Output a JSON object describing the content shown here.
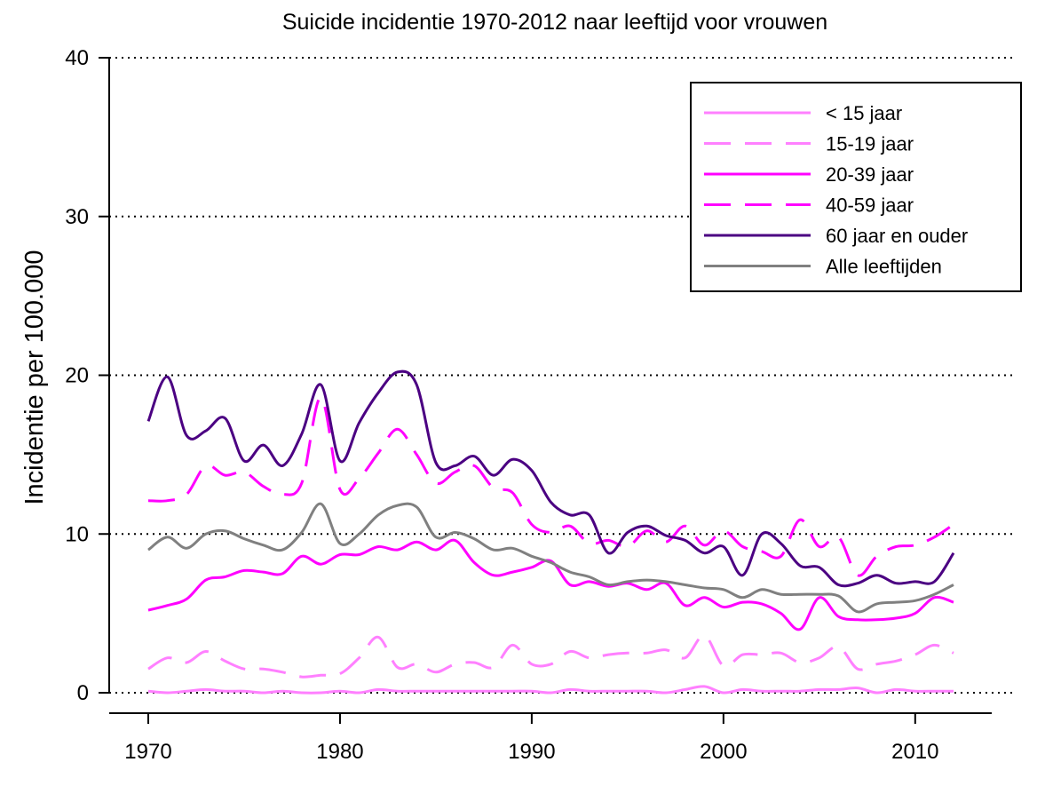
{
  "chart_data": {
    "type": "line",
    "title": "Suicide incidentie 1970-2012 naar leeftijd voor vrouwen",
    "xlabel": "",
    "ylabel": "Incidentie per 100.000",
    "xlim": [
      1970,
      2012
    ],
    "ylim": [
      0,
      40
    ],
    "xticks": [
      1970,
      1980,
      1990,
      2000,
      2010
    ],
    "yticks": [
      0,
      10,
      20,
      30,
      40
    ],
    "grid": "horizontal dotted",
    "legend_position": "top-right",
    "x": [
      1970,
      1971,
      1972,
      1973,
      1974,
      1975,
      1976,
      1977,
      1978,
      1979,
      1980,
      1981,
      1982,
      1983,
      1984,
      1985,
      1986,
      1987,
      1988,
      1989,
      1990,
      1991,
      1992,
      1993,
      1994,
      1995,
      1996,
      1997,
      1998,
      1999,
      2000,
      2001,
      2002,
      2003,
      2004,
      2005,
      2006,
      2007,
      2008,
      2009,
      2010,
      2011,
      2012
    ],
    "series": [
      {
        "name": "< 15 jaar",
        "color": "#ff80ff",
        "dash": "solid",
        "values": [
          0.1,
          0.0,
          0.1,
          0.2,
          0.1,
          0.1,
          0.0,
          0.1,
          0.0,
          0.0,
          0.1,
          0.0,
          0.2,
          0.1,
          0.1,
          0.1,
          0.1,
          0.1,
          0.1,
          0.1,
          0.1,
          0.0,
          0.2,
          0.1,
          0.1,
          0.1,
          0.1,
          0.0,
          0.2,
          0.4,
          0.0,
          0.2,
          0.1,
          0.1,
          0.1,
          0.2,
          0.2,
          0.3,
          0.0,
          0.2,
          0.1,
          0.1,
          0.1
        ]
      },
      {
        "name": "15-19 jaar",
        "color": "#ff80ff",
        "dash": "dashed",
        "values": [
          1.5,
          2.2,
          1.9,
          2.6,
          2.0,
          1.5,
          1.5,
          1.3,
          1.0,
          1.1,
          1.2,
          2.2,
          3.5,
          1.6,
          1.8,
          1.3,
          1.8,
          1.9,
          1.6,
          3.0,
          1.8,
          1.8,
          2.6,
          2.2,
          2.4,
          2.5,
          2.5,
          2.7,
          2.2,
          3.6,
          1.7,
          2.4,
          2.4,
          2.5,
          1.9,
          2.2,
          2.9,
          1.5,
          1.8,
          2.0,
          2.4,
          3.0,
          2.5
        ]
      },
      {
        "name": "20-39 jaar",
        "color": "#ff00ff",
        "dash": "solid",
        "values": [
          5.2,
          5.5,
          5.9,
          7.1,
          7.3,
          7.7,
          7.6,
          7.5,
          8.6,
          8.1,
          8.7,
          8.7,
          9.2,
          9.0,
          9.5,
          9.0,
          9.6,
          8.2,
          7.4,
          7.6,
          7.9,
          8.3,
          6.8,
          7.0,
          6.7,
          6.9,
          6.5,
          6.9,
          5.5,
          6.0,
          5.4,
          5.7,
          5.6,
          5.0,
          4.0,
          6.0,
          4.8,
          4.6,
          4.6,
          4.7,
          5.0,
          6.0,
          5.7
        ]
      },
      {
        "name": "40-59 jaar",
        "color": "#ff00ff",
        "dash": "dashed",
        "values": [
          12.1,
          12.1,
          12.5,
          14.3,
          13.7,
          13.9,
          13.0,
          12.5,
          13.2,
          18.6,
          12.8,
          13.5,
          15.1,
          16.6,
          15.0,
          13.2,
          13.9,
          14.3,
          12.9,
          12.6,
          10.6,
          10.1,
          10.5,
          9.4,
          9.6,
          9.2,
          10.2,
          9.5,
          10.5,
          9.3,
          10.2,
          9.2,
          8.9,
          8.6,
          10.9,
          9.2,
          9.8,
          7.4,
          8.6,
          9.2,
          9.3,
          9.8,
          10.6
        ]
      },
      {
        "name": "60 jaar en ouder",
        "color": "#4b0082",
        "dash": "solid",
        "values": [
          17.1,
          19.9,
          16.2,
          16.5,
          17.3,
          14.6,
          15.6,
          14.3,
          16.3,
          19.4,
          14.6,
          17.0,
          18.9,
          20.2,
          19.4,
          14.5,
          14.3,
          14.9,
          13.7,
          14.7,
          14.0,
          12.0,
          11.2,
          11.2,
          8.8,
          10.1,
          10.5,
          9.9,
          9.6,
          8.8,
          9.2,
          7.4,
          10.0,
          9.4,
          8.0,
          7.9,
          6.8,
          6.9,
          7.4,
          6.9,
          7.0,
          7.0,
          8.8
        ]
      },
      {
        "name": "Alle leeftijden",
        "color": "#808080",
        "dash": "solid",
        "values": [
          9.0,
          9.8,
          9.1,
          10.0,
          10.2,
          9.7,
          9.3,
          9.0,
          10.1,
          11.9,
          9.4,
          10.0,
          11.2,
          11.8,
          11.7,
          9.8,
          10.1,
          9.7,
          9.0,
          9.1,
          8.6,
          8.2,
          7.6,
          7.3,
          6.8,
          7.0,
          7.1,
          7.0,
          6.8,
          6.6,
          6.5,
          6.0,
          6.5,
          6.2,
          6.2,
          6.2,
          6.1,
          5.1,
          5.6,
          5.7,
          5.8,
          6.2,
          6.8
        ]
      }
    ]
  }
}
